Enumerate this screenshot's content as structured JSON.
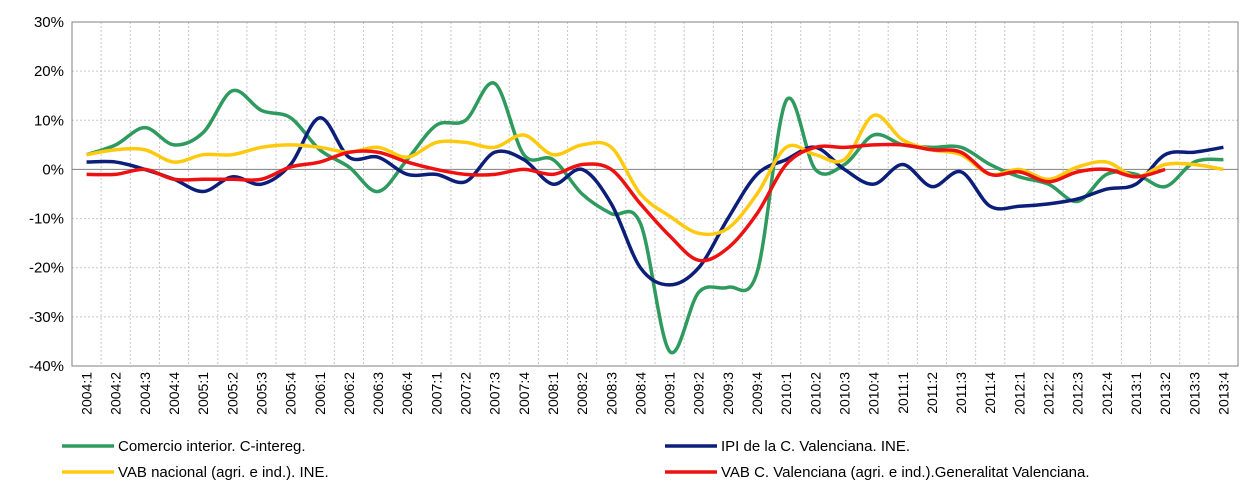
{
  "chart_data": {
    "type": "line",
    "categories": [
      "2004:1",
      "2004:2",
      "2004:3",
      "2004:4",
      "2005:1",
      "2005:2",
      "2005:3",
      "2005:4",
      "2006:1",
      "2006:2",
      "2006:3",
      "2006:4",
      "2007:1",
      "2007:2",
      "2007:3",
      "2007:4",
      "2008:1",
      "2008:2",
      "2008:3",
      "2008:4",
      "2009:1",
      "2009:2",
      "2009:3",
      "2009:4",
      "2010:1",
      "2010:2",
      "2010:3",
      "2010:4",
      "2011:1",
      "2011:2",
      "2011:3",
      "2011:4",
      "2012:1",
      "2012:2",
      "2012:3",
      "2012:4",
      "2013:1",
      "2013:2",
      "2013:3",
      "2013:4"
    ],
    "series": [
      {
        "name": "Comercio interior. C-intereg.",
        "color": "#2e9a5e",
        "values": [
          3,
          5,
          8.5,
          5,
          7.5,
          16,
          12,
          10.5,
          4,
          0.5,
          -4.5,
          2,
          9,
          10,
          17.5,
          3,
          2,
          -5,
          -9,
          -11,
          -37,
          -25,
          -24,
          -21,
          14,
          0,
          1,
          7,
          5,
          4.5,
          4.5,
          1,
          -1.5,
          -3,
          -6.5,
          -1,
          -1,
          -3.5,
          1.5,
          2
        ]
      },
      {
        "name": "IPI de la C. Valenciana. INE.",
        "color": "#0b1f7a",
        "values": [
          1.5,
          1.5,
          0,
          -2,
          -4.5,
          -1.5,
          -3,
          1,
          10.5,
          2.5,
          2.5,
          -1,
          -1,
          -2.5,
          3.5,
          2,
          -3,
          0,
          -7,
          -20,
          -23.5,
          -20,
          -10,
          -1,
          2,
          4.5,
          0,
          -3,
          1,
          -3.5,
          -0.5,
          -7.5,
          -7.5,
          -7,
          -6,
          -4,
          -3,
          3,
          3.5,
          4.5
        ]
      },
      {
        "name": "VAB nacional (agri. e ind.). INE.",
        "color": "#ffc90e",
        "values": [
          3,
          4,
          4,
          1.5,
          3,
          3,
          4.5,
          5,
          4.5,
          3.5,
          4.5,
          2.5,
          5.5,
          5.5,
          4.5,
          7,
          3,
          5,
          4.5,
          -5,
          -9.5,
          -13,
          -12,
          -5,
          4.5,
          3,
          2,
          11,
          6,
          4,
          3,
          -1,
          0,
          -2,
          0.5,
          1.5,
          -1.5,
          1,
          1,
          0
        ]
      },
      {
        "name": "VAB C. Valenciana (agri. e  ind.).Generalitat Valenciana.",
        "color": "#ee1111",
        "values": [
          -1,
          -1,
          0,
          -2,
          -2,
          -2,
          -2,
          0.5,
          1.5,
          3.5,
          3.5,
          1.5,
          0,
          -1,
          -1,
          0,
          -1,
          1,
          0,
          -7,
          -13.5,
          -18.5,
          -16,
          -9,
          1,
          4.5,
          4.5,
          5,
          5,
          4,
          3.5,
          -1,
          -0.5,
          -2.5,
          -0.5,
          0,
          -1.5,
          0,
          null,
          null
        ]
      }
    ],
    "ylim": [
      -40,
      30
    ],
    "yticks": [
      {
        "value": -40,
        "label": "-40%"
      },
      {
        "value": -30,
        "label": "-30%"
      },
      {
        "value": -20,
        "label": "-20%"
      },
      {
        "value": -10,
        "label": "-10%"
      },
      {
        "value": 0,
        "label": "0%"
      },
      {
        "value": 10,
        "label": "10%"
      },
      {
        "value": 20,
        "label": "20%"
      },
      {
        "value": 30,
        "label": "30%"
      }
    ],
    "grid": true
  }
}
